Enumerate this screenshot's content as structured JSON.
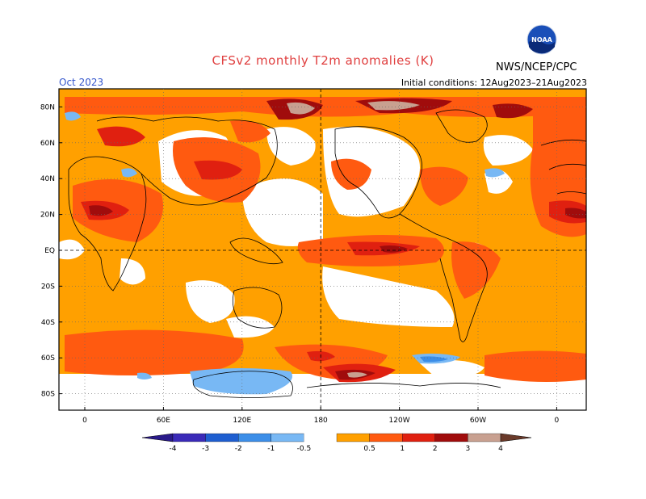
{
  "header": {
    "title": "CFSv2 monthly T2m anomalies (K)",
    "org": "NWS/NCEP/CPC",
    "logo_text": "NOAA",
    "month": "Oct 2023",
    "initial_conditions": "Initial conditions: 12Aug2023–21Aug2023"
  },
  "map": {
    "lat_labels": [
      "80N",
      "60N",
      "40N",
      "20N",
      "EQ",
      "20S",
      "40S",
      "60S",
      "80S"
    ],
    "lon_labels": [
      "0",
      "60E",
      "120E",
      "180",
      "120W",
      "60W",
      "0"
    ]
  },
  "legend": {
    "levels": [
      "-4",
      "-3",
      "-2",
      "-1",
      "-0.5",
      "0.5",
      "1",
      "2",
      "3",
      "4"
    ],
    "colors": {
      "lt_-4": "#2a1a8a",
      "-4_-3": "#3a2ab8",
      "-3_-2": "#1e5ed0",
      "-2_-1": "#3c8ee8",
      "-1_-0.5": "#78b8f4",
      "-0.5_0.5": "#ffffff",
      "0.5_1": "#ffa000",
      "1_2": "#ff5a10",
      "2_3": "#e02010",
      "3_4": "#a00c0c",
      "4_5": "#c8a090",
      "gt_5": "#6a3a2a"
    }
  }
}
